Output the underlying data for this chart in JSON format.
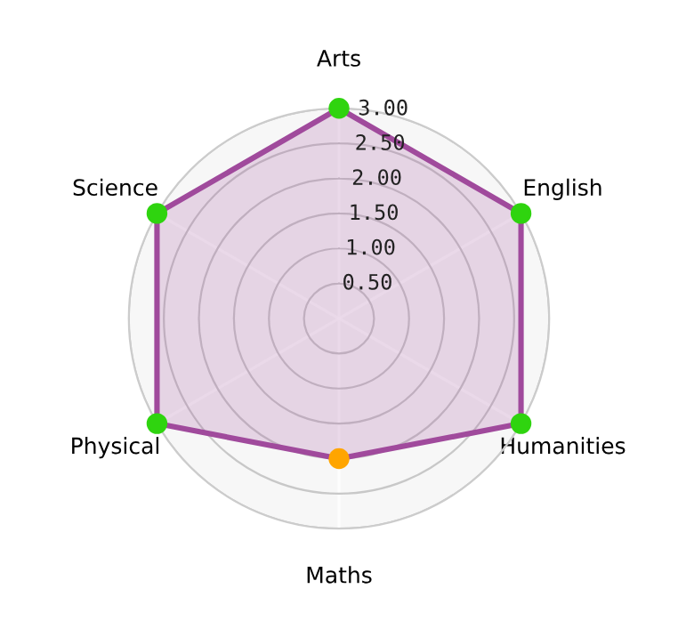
{
  "chart_data": {
    "type": "radar",
    "categories": [
      "Arts",
      "English",
      "Humanities",
      "Maths",
      "Physical",
      "Science"
    ],
    "series": [
      {
        "color": "#a04a9c",
        "colors": [
          "#2fd40f",
          "#2fd40f",
          "#2fd40f",
          "#ffa500",
          "#2fd40f",
          "#2fd40f"
        ],
        "values": [
          3.0,
          3.0,
          3.0,
          2.0,
          3.0,
          3.0
        ]
      }
    ],
    "ylim": [
      0,
      3.0
    ],
    "yticks": [
      {
        "value": 0.5,
        "label": "0.50"
      },
      {
        "value": 1.0,
        "label": "1.00"
      },
      {
        "value": 1.5,
        "label": "1.50"
      },
      {
        "value": 2.0,
        "label": "2.00"
      },
      {
        "value": 2.5,
        "label": "2.50"
      },
      {
        "value": 3.0,
        "label": "3.00"
      }
    ],
    "grid": true,
    "marker": "circle",
    "legend": false
  }
}
